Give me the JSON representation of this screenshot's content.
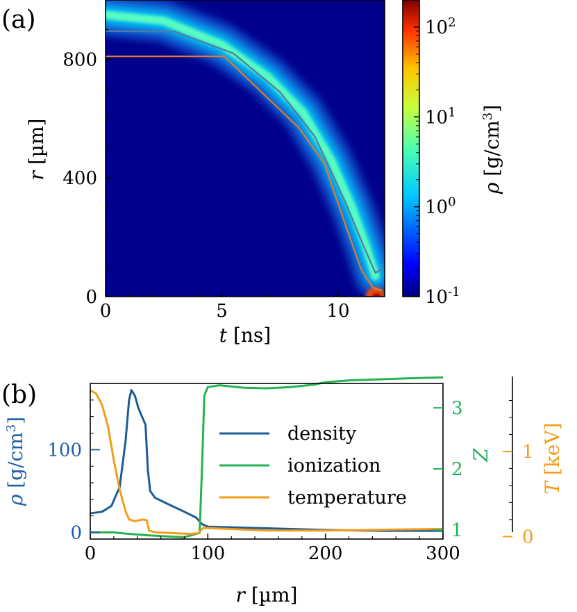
{
  "panel_a_label": "(a)",
  "panel_b_label": "(b)",
  "chart_data": [
    {
      "type": "heatmap",
      "panel": "(a)",
      "xlabel": "t [ns]",
      "ylabel": "r [µm]",
      "xlim": [
        0,
        12
      ],
      "ylim": [
        0,
        1000
      ],
      "x_ticks": [
        0,
        5,
        10
      ],
      "y_ticks": [
        0,
        400,
        800
      ],
      "colorbar": {
        "label": "ρ [g/cm³]",
        "scale": "log",
        "range": [
          0.1,
          200
        ],
        "ticks": [
          {
            "value": 0.1,
            "base": "10",
            "exp": "-1"
          },
          {
            "value": 1,
            "base": "10",
            "exp": "0"
          },
          {
            "value": 10,
            "base": "10",
            "exp": "1"
          },
          {
            "value": 100,
            "base": "10",
            "exp": "2"
          }
        ],
        "colormap": "jet"
      },
      "overlay_lines": [
        {
          "color": "#e07b2c",
          "points": [
            [
              0,
              810
            ],
            [
              5.1,
              810
            ],
            [
              8.3,
              570
            ],
            [
              9.4,
              450
            ],
            [
              10.5,
              200
            ],
            [
              11.0,
              90
            ],
            [
              11.5,
              30
            ],
            [
              11.9,
              20
            ]
          ]
        },
        {
          "color": "#5a7a9a",
          "points": [
            [
              0,
              895
            ],
            [
              3.0,
              893
            ],
            [
              5.5,
              820
            ],
            [
              7.5,
              690
            ],
            [
              9.0,
              540
            ],
            [
              10.3,
              320
            ],
            [
              11.1,
              170
            ],
            [
              11.6,
              80
            ],
            [
              11.9,
              95
            ]
          ]
        }
      ],
      "ridge": [
        [
          0,
          950
        ],
        [
          2.5,
          930
        ],
        [
          5,
          850
        ],
        [
          7,
          740
        ],
        [
          8.5,
          620
        ],
        [
          9.7,
          460
        ],
        [
          10.6,
          300
        ],
        [
          11.2,
          170
        ],
        [
          11.6,
          70
        ]
      ]
    },
    {
      "type": "line",
      "panel": "(b)",
      "xlabel": "r [µm]",
      "xlim": [
        0,
        300
      ],
      "x_ticks": [
        0,
        100,
        200,
        300
      ],
      "axes": [
        {
          "id": "rho",
          "label": "ρ [g/cm³]",
          "color": "#1f5fa6",
          "range": [
            -8,
            180
          ],
          "ticks": [
            0,
            100
          ]
        },
        {
          "id": "Z",
          "label": "Z",
          "color": "#22b05a",
          "range": [
            0.85,
            3.4
          ],
          "ticks": [
            1,
            2,
            3
          ]
        },
        {
          "id": "T",
          "label": "T [keV]",
          "color": "#f39c1a",
          "range": [
            -0.03,
            1.8
          ],
          "ticks": [
            0,
            1
          ]
        }
      ],
      "series": [
        {
          "name": "density",
          "axis": "rho",
          "color": "#1a5c99",
          "x": [
            0,
            10,
            18,
            25,
            30,
            33,
            35,
            38,
            41,
            44,
            47,
            49,
            51,
            55,
            65,
            80,
            90,
            95,
            100,
            150,
            200,
            250,
            300
          ],
          "y": [
            23,
            25,
            32,
            55,
            110,
            160,
            172,
            165,
            150,
            140,
            130,
            75,
            50,
            42,
            35,
            25,
            18,
            10,
            7,
            5,
            3,
            2,
            2
          ]
        },
        {
          "name": "ionization",
          "axis": "Z",
          "color": "#25b24f",
          "x": [
            0,
            20,
            30,
            50,
            80,
            93,
            95,
            97,
            100,
            110,
            130,
            150,
            170,
            190,
            200,
            220,
            250,
            280,
            300
          ],
          "y": [
            0.96,
            0.96,
            0.94,
            0.91,
            0.88,
            0.95,
            2.0,
            3.2,
            3.34,
            3.37,
            3.33,
            3.32,
            3.34,
            3.38,
            3.42,
            3.45,
            3.47,
            3.49,
            3.5
          ],
          "z_axis": true
        },
        {
          "name": "temperature",
          "axis": "T",
          "color": "#f39c1a",
          "x": [
            0,
            5,
            10,
            15,
            20,
            25,
            30,
            33,
            38,
            41,
            45,
            48,
            50,
            55,
            70,
            85,
            92,
            96,
            100,
            150,
            200,
            250,
            300
          ],
          "y": [
            1.72,
            1.68,
            1.55,
            1.3,
            0.9,
            0.55,
            0.3,
            0.2,
            0.18,
            0.19,
            0.2,
            0.19,
            0.07,
            0.05,
            0.04,
            0.03,
            0.04,
            0.1,
            0.1,
            0.07,
            0.07,
            0.08,
            0.09
          ]
        }
      ],
      "legend": {
        "placement": "center",
        "entries": [
          "density",
          "ionization",
          "temperature"
        ]
      }
    }
  ]
}
